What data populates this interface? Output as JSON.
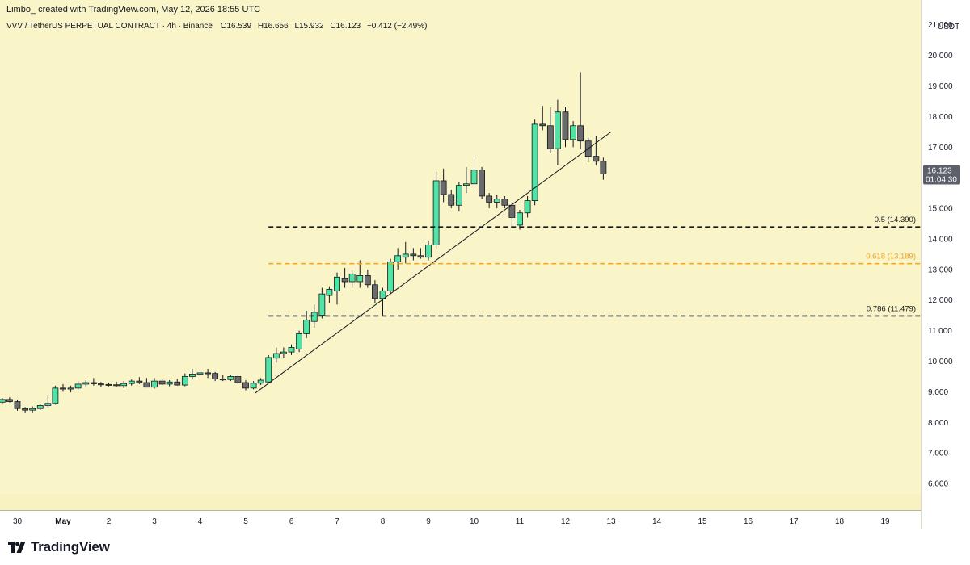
{
  "header": {
    "attribution": "Limbo_ created with TradingView.com, May 12, 2026 18:55 UTC"
  },
  "footer": {
    "logo_text": "TradingView",
    "logo_icon": "tradingview-logo-icon"
  },
  "colors": {
    "background": "#faf5c8",
    "up_candle": "#4fe3a4",
    "down_candle": "#6b6b6b",
    "fib_orange": "#f5a623",
    "fib_black": "#131722",
    "price_tag": "#5d606b"
  },
  "chart_data": {
    "type": "candlestick",
    "title": "VVV / TetherUS PERPETUAL CONTRACT · 4h · Binance",
    "ohlc_legend": {
      "o": "O16.539",
      "h": "H16.656",
      "l": "L15.932",
      "c": "C16.123",
      "change": "−0.412 (−2.49%)"
    },
    "currency": "USDT",
    "ylim": [
      5.5,
      21.6
    ],
    "y_ticks": [
      "6.000",
      "7.000",
      "8.000",
      "9.000",
      "10.000",
      "11.000",
      "12.000",
      "13.000",
      "14.000",
      "15.000",
      "16.000",
      "17.000",
      "18.000",
      "19.000",
      "20.000",
      "21.000"
    ],
    "x_ticks": [
      {
        "label": "30",
        "day": -1
      },
      {
        "label": "May",
        "day": 0
      },
      {
        "label": "2",
        "day": 1
      },
      {
        "label": "3",
        "day": 2
      },
      {
        "label": "4",
        "day": 3
      },
      {
        "label": "5",
        "day": 4
      },
      {
        "label": "6",
        "day": 5
      },
      {
        "label": "7",
        "day": 6
      },
      {
        "label": "8",
        "day": 7
      },
      {
        "label": "9",
        "day": 8
      },
      {
        "label": "10",
        "day": 9
      },
      {
        "label": "11",
        "day": 10
      },
      {
        "label": "12",
        "day": 11
      },
      {
        "label": "13",
        "day": 12
      },
      {
        "label": "14",
        "day": 13
      },
      {
        "label": "15",
        "day": 14
      },
      {
        "label": "16",
        "day": 15
      },
      {
        "label": "17",
        "day": 16
      },
      {
        "label": "18",
        "day": 17
      },
      {
        "label": "19",
        "day": 18
      }
    ],
    "candles": [
      {
        "t": -1.67,
        "o": 8.66,
        "h": 8.72,
        "l": 8.6,
        "c": 8.7
      },
      {
        "t": -1.5,
        "o": 8.7,
        "h": 8.78,
        "l": 8.62,
        "c": 8.66
      },
      {
        "t": -1.33,
        "o": 8.66,
        "h": 8.8,
        "l": 8.62,
        "c": 8.75
      },
      {
        "t": -1.17,
        "o": 8.75,
        "h": 8.82,
        "l": 8.65,
        "c": 8.68
      },
      {
        "t": -1.0,
        "o": 8.68,
        "h": 8.74,
        "l": 8.38,
        "c": 8.45
      },
      {
        "t": -0.83,
        "o": 8.45,
        "h": 8.5,
        "l": 8.3,
        "c": 8.4
      },
      {
        "t": -0.67,
        "o": 8.4,
        "h": 8.52,
        "l": 8.3,
        "c": 8.45
      },
      {
        "t": -0.5,
        "o": 8.45,
        "h": 8.6,
        "l": 8.4,
        "c": 8.55
      },
      {
        "t": -0.33,
        "o": 8.55,
        "h": 8.9,
        "l": 8.5,
        "c": 8.62
      },
      {
        "t": -0.17,
        "o": 8.62,
        "h": 9.2,
        "l": 8.58,
        "c": 9.12
      },
      {
        "t": 0.0,
        "o": 9.12,
        "h": 9.25,
        "l": 9.0,
        "c": 9.1
      },
      {
        "t": 0.17,
        "o": 9.1,
        "h": 9.2,
        "l": 8.98,
        "c": 9.12
      },
      {
        "t": 0.33,
        "o": 9.12,
        "h": 9.35,
        "l": 9.05,
        "c": 9.25
      },
      {
        "t": 0.5,
        "o": 9.25,
        "h": 9.38,
        "l": 9.18,
        "c": 9.3
      },
      {
        "t": 0.67,
        "o": 9.3,
        "h": 9.45,
        "l": 9.2,
        "c": 9.26
      },
      {
        "t": 0.83,
        "o": 9.26,
        "h": 9.32,
        "l": 9.15,
        "c": 9.24
      },
      {
        "t": 1.0,
        "o": 9.24,
        "h": 9.3,
        "l": 9.18,
        "c": 9.23
      },
      {
        "t": 1.17,
        "o": 9.23,
        "h": 9.33,
        "l": 9.15,
        "c": 9.2
      },
      {
        "t": 1.33,
        "o": 9.2,
        "h": 9.35,
        "l": 9.12,
        "c": 9.27
      },
      {
        "t": 1.5,
        "o": 9.27,
        "h": 9.4,
        "l": 9.2,
        "c": 9.35
      },
      {
        "t": 1.67,
        "o": 9.35,
        "h": 9.48,
        "l": 9.25,
        "c": 9.3
      },
      {
        "t": 1.83,
        "o": 9.3,
        "h": 9.45,
        "l": 9.15,
        "c": 9.15
      },
      {
        "t": 2.0,
        "o": 9.15,
        "h": 9.45,
        "l": 9.1,
        "c": 9.35
      },
      {
        "t": 2.17,
        "o": 9.35,
        "h": 9.42,
        "l": 9.22,
        "c": 9.25
      },
      {
        "t": 2.33,
        "o": 9.25,
        "h": 9.38,
        "l": 9.18,
        "c": 9.32
      },
      {
        "t": 2.5,
        "o": 9.32,
        "h": 9.42,
        "l": 9.2,
        "c": 9.22
      },
      {
        "t": 2.67,
        "o": 9.22,
        "h": 9.6,
        "l": 9.18,
        "c": 9.5
      },
      {
        "t": 2.83,
        "o": 9.5,
        "h": 9.75,
        "l": 9.42,
        "c": 9.58
      },
      {
        "t": 3.0,
        "o": 9.58,
        "h": 9.7,
        "l": 9.48,
        "c": 9.62
      },
      {
        "t": 3.17,
        "o": 9.62,
        "h": 9.75,
        "l": 9.45,
        "c": 9.6
      },
      {
        "t": 3.33,
        "o": 9.6,
        "h": 9.65,
        "l": 9.35,
        "c": 9.42
      },
      {
        "t": 3.5,
        "o": 9.42,
        "h": 9.55,
        "l": 9.35,
        "c": 9.4
      },
      {
        "t": 3.67,
        "o": 9.4,
        "h": 9.55,
        "l": 9.35,
        "c": 9.5
      },
      {
        "t": 3.83,
        "o": 9.5,
        "h": 9.55,
        "l": 9.25,
        "c": 9.3
      },
      {
        "t": 4.0,
        "o": 9.3,
        "h": 9.38,
        "l": 9.05,
        "c": 9.12
      },
      {
        "t": 4.17,
        "o": 9.12,
        "h": 9.35,
        "l": 9.08,
        "c": 9.28
      },
      {
        "t": 4.33,
        "o": 9.28,
        "h": 9.45,
        "l": 9.22,
        "c": 9.38
      },
      {
        "t": 4.5,
        "o": 9.32,
        "h": 10.2,
        "l": 9.3,
        "c": 10.12
      },
      {
        "t": 4.67,
        "o": 10.1,
        "h": 10.45,
        "l": 9.95,
        "c": 10.25
      },
      {
        "t": 4.83,
        "o": 10.25,
        "h": 10.45,
        "l": 10.1,
        "c": 10.3
      },
      {
        "t": 5.0,
        "o": 10.3,
        "h": 10.55,
        "l": 10.2,
        "c": 10.45
      },
      {
        "t": 5.17,
        "o": 10.4,
        "h": 11.0,
        "l": 10.3,
        "c": 10.9
      },
      {
        "t": 5.33,
        "o": 10.9,
        "h": 11.65,
        "l": 10.75,
        "c": 11.35
      },
      {
        "t": 5.5,
        "o": 11.3,
        "h": 11.85,
        "l": 11.1,
        "c": 11.6
      },
      {
        "t": 5.67,
        "o": 11.5,
        "h": 12.4,
        "l": 11.4,
        "c": 12.2
      },
      {
        "t": 5.83,
        "o": 12.15,
        "h": 12.45,
        "l": 11.9,
        "c": 12.35
      },
      {
        "t": 6.0,
        "o": 12.3,
        "h": 12.9,
        "l": 11.85,
        "c": 12.75
      },
      {
        "t": 6.17,
        "o": 12.7,
        "h": 13.05,
        "l": 12.4,
        "c": 12.6
      },
      {
        "t": 6.33,
        "o": 12.6,
        "h": 12.95,
        "l": 12.4,
        "c": 12.85
      },
      {
        "t": 6.5,
        "o": 12.6,
        "h": 13.3,
        "l": 12.4,
        "c": 12.8
      },
      {
        "t": 6.67,
        "o": 12.8,
        "h": 13.0,
        "l": 12.4,
        "c": 12.5
      },
      {
        "t": 6.83,
        "o": 12.5,
        "h": 12.65,
        "l": 11.9,
        "c": 12.05
      },
      {
        "t": 7.0,
        "o": 12.05,
        "h": 12.4,
        "l": 11.5,
        "c": 12.3
      },
      {
        "t": 7.17,
        "o": 12.3,
        "h": 13.35,
        "l": 12.2,
        "c": 13.25
      },
      {
        "t": 7.33,
        "o": 13.25,
        "h": 13.7,
        "l": 13.0,
        "c": 13.45
      },
      {
        "t": 7.5,
        "o": 13.4,
        "h": 13.9,
        "l": 13.2,
        "c": 13.5
      },
      {
        "t": 7.67,
        "o": 13.5,
        "h": 13.7,
        "l": 13.3,
        "c": 13.45
      },
      {
        "t": 7.83,
        "o": 13.45,
        "h": 13.7,
        "l": 13.35,
        "c": 13.4
      },
      {
        "t": 8.0,
        "o": 13.4,
        "h": 13.95,
        "l": 13.3,
        "c": 13.8
      },
      {
        "t": 8.17,
        "o": 13.8,
        "h": 16.2,
        "l": 13.65,
        "c": 15.9
      },
      {
        "t": 8.33,
        "o": 15.9,
        "h": 16.3,
        "l": 15.2,
        "c": 15.45
      },
      {
        "t": 8.5,
        "o": 15.45,
        "h": 15.6,
        "l": 15.0,
        "c": 15.1
      },
      {
        "t": 8.67,
        "o": 15.1,
        "h": 15.85,
        "l": 14.9,
        "c": 15.75
      },
      {
        "t": 8.83,
        "o": 15.75,
        "h": 16.35,
        "l": 15.5,
        "c": 15.8
      },
      {
        "t": 9.0,
        "o": 15.8,
        "h": 16.7,
        "l": 15.6,
        "c": 16.25
      },
      {
        "t": 9.17,
        "o": 16.25,
        "h": 16.35,
        "l": 15.3,
        "c": 15.4
      },
      {
        "t": 9.33,
        "o": 15.4,
        "h": 15.5,
        "l": 15.0,
        "c": 15.2
      },
      {
        "t": 9.5,
        "o": 15.2,
        "h": 15.45,
        "l": 15.0,
        "c": 15.3
      },
      {
        "t": 9.67,
        "o": 15.3,
        "h": 15.4,
        "l": 15.0,
        "c": 15.1
      },
      {
        "t": 9.83,
        "o": 15.1,
        "h": 15.2,
        "l": 14.4,
        "c": 14.7
      },
      {
        "t": 10.0,
        "o": 14.45,
        "h": 14.95,
        "l": 14.3,
        "c": 14.85
      },
      {
        "t": 10.17,
        "o": 14.85,
        "h": 15.4,
        "l": 14.7,
        "c": 15.25
      },
      {
        "t": 10.33,
        "o": 15.25,
        "h": 17.9,
        "l": 15.1,
        "c": 17.75
      },
      {
        "t": 10.5,
        "o": 17.75,
        "h": 18.35,
        "l": 17.55,
        "c": 17.7
      },
      {
        "t": 10.67,
        "o": 17.7,
        "h": 18.3,
        "l": 16.8,
        "c": 16.95
      },
      {
        "t": 10.83,
        "o": 16.95,
        "h": 18.55,
        "l": 16.4,
        "c": 18.15
      },
      {
        "t": 11.0,
        "o": 18.15,
        "h": 18.3,
        "l": 17.0,
        "c": 17.25
      },
      {
        "t": 11.17,
        "o": 17.25,
        "h": 17.85,
        "l": 17.0,
        "c": 17.7
      },
      {
        "t": 11.33,
        "o": 17.7,
        "h": 19.45,
        "l": 16.95,
        "c": 17.2
      },
      {
        "t": 11.5,
        "o": 17.2,
        "h": 17.3,
        "l": 16.5,
        "c": 16.7
      },
      {
        "t": 11.67,
        "o": 16.7,
        "h": 17.35,
        "l": 16.4,
        "c": 16.539
      },
      {
        "t": 11.83,
        "o": 16.539,
        "h": 16.656,
        "l": 15.932,
        "c": 16.123
      }
    ],
    "trendline": {
      "start": {
        "t": 4.2,
        "y": 8.95
      },
      "end": {
        "t": 12.0,
        "y": 17.5
      }
    },
    "fib_levels": [
      {
        "label": "0.5 (14.390)",
        "value": 14.39,
        "color": "#131722",
        "from_t": 4.5
      },
      {
        "label": "0.618 (13.189)",
        "value": 13.189,
        "color": "#f5a623",
        "from_t": 4.5
      },
      {
        "label": "0.786 (11.479)",
        "value": 11.479,
        "color": "#131722",
        "from_t": 4.5
      }
    ],
    "last_price": {
      "value": 16.123,
      "label": "16.123",
      "countdown": "01:04:30"
    }
  }
}
